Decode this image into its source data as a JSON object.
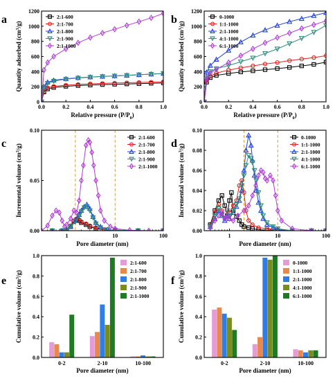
{
  "chart_data": [
    {
      "panel": "a",
      "type": "line",
      "xlabel": "Relative pressure (P/P0)",
      "ylabel": "Quantity adsorbed (cm³/g)",
      "xlim": [
        0,
        1
      ],
      "ylim": [
        0,
        1200
      ],
      "xticks": [
        0.0,
        0.2,
        0.4,
        0.6,
        0.8,
        1.0
      ],
      "yticks": [
        0,
        200,
        400,
        600,
        800,
        1000,
        1200
      ],
      "legend_position": "top-left",
      "series": [
        {
          "name": "2:1-600",
          "color": "#000000",
          "marker": "square",
          "x": [
            0,
            0.02,
            0.05,
            0.1,
            0.2,
            0.3,
            0.4,
            0.5,
            0.6,
            0.7,
            0.8,
            0.9,
            1.0
          ],
          "y": [
            0,
            130,
            170,
            190,
            205,
            215,
            222,
            228,
            232,
            236,
            240,
            245,
            250
          ]
        },
        {
          "name": "2:1-700",
          "color": "#e02020",
          "marker": "circle",
          "x": [
            0,
            0.02,
            0.05,
            0.1,
            0.2,
            0.3,
            0.4,
            0.5,
            0.6,
            0.7,
            0.8,
            0.9,
            1.0
          ],
          "y": [
            0,
            140,
            185,
            205,
            220,
            230,
            238,
            244,
            248,
            252,
            256,
            260,
            265
          ]
        },
        {
          "name": "2:1-800",
          "color": "#1f3fe0",
          "marker": "triangle-up",
          "x": [
            0,
            0.02,
            0.05,
            0.1,
            0.2,
            0.3,
            0.4,
            0.5,
            0.6,
            0.7,
            0.8,
            0.9,
            1.0
          ],
          "y": [
            0,
            200,
            260,
            285,
            305,
            318,
            328,
            336,
            343,
            350,
            358,
            366,
            375
          ]
        },
        {
          "name": "2:1-900",
          "color": "#2e8b7a",
          "marker": "triangle-down",
          "x": [
            0,
            0.02,
            0.05,
            0.1,
            0.2,
            0.3,
            0.4,
            0.5,
            0.6,
            0.7,
            0.8,
            0.9,
            1.0
          ],
          "y": [
            0,
            190,
            245,
            275,
            300,
            315,
            326,
            335,
            342,
            350,
            358,
            366,
            375
          ]
        },
        {
          "name": "2:1-1000",
          "color": "#b03ad8",
          "marker": "diamond",
          "x": [
            0,
            0.02,
            0.05,
            0.1,
            0.2,
            0.3,
            0.4,
            0.5,
            0.6,
            0.7,
            0.8,
            0.9,
            1.0
          ],
          "y": [
            0,
            420,
            520,
            600,
            700,
            780,
            850,
            910,
            960,
            1010,
            1060,
            1110,
            1170
          ]
        }
      ]
    },
    {
      "panel": "b",
      "type": "line",
      "xlabel": "Relative pressure (P/P0)",
      "ylabel": "Quantity adsorbed (cm³/g)",
      "xlim": [
        0,
        1
      ],
      "ylim": [
        0,
        1200
      ],
      "xticks": [
        0.0,
        0.2,
        0.4,
        0.6,
        0.8,
        1.0
      ],
      "yticks": [
        0,
        200,
        400,
        600,
        800,
        1000,
        1200
      ],
      "legend_position": "top-left",
      "series": [
        {
          "name": "0-1000",
          "color": "#000000",
          "marker": "square",
          "x": [
            0,
            0.02,
            0.05,
            0.1,
            0.2,
            0.3,
            0.4,
            0.5,
            0.6,
            0.7,
            0.8,
            0.9,
            1.0
          ],
          "y": [
            0,
            260,
            320,
            350,
            375,
            395,
            410,
            425,
            440,
            455,
            475,
            495,
            525
          ]
        },
        {
          "name": "1:1-1000",
          "color": "#e02020",
          "marker": "circle",
          "x": [
            0,
            0.02,
            0.05,
            0.1,
            0.2,
            0.3,
            0.4,
            0.5,
            0.6,
            0.7,
            0.8,
            0.9,
            1.0
          ],
          "y": [
            0,
            280,
            340,
            380,
            420,
            450,
            475,
            500,
            520,
            545,
            565,
            585,
            610
          ]
        },
        {
          "name": "2:1-1000",
          "color": "#1f3fe0",
          "marker": "triangle-up",
          "x": [
            0,
            0.02,
            0.05,
            0.1,
            0.2,
            0.3,
            0.4,
            0.5,
            0.6,
            0.7,
            0.8,
            0.9,
            1.0
          ],
          "y": [
            0,
            390,
            480,
            560,
            680,
            790,
            880,
            950,
            1010,
            1060,
            1100,
            1140,
            1180
          ]
        },
        {
          "name": "4:1-1000",
          "color": "#2e8b7a",
          "marker": "triangle-down",
          "x": [
            0,
            0.02,
            0.05,
            0.1,
            0.2,
            0.3,
            0.4,
            0.5,
            0.6,
            0.7,
            0.8,
            0.9,
            1.0
          ],
          "y": [
            0,
            320,
            400,
            440,
            480,
            530,
            580,
            640,
            700,
            770,
            840,
            920,
            1010
          ]
        },
        {
          "name": "6:1-1000",
          "color": "#b03ad8",
          "marker": "diamond",
          "x": [
            0,
            0.02,
            0.05,
            0.1,
            0.2,
            0.3,
            0.4,
            0.5,
            0.6,
            0.7,
            0.8,
            0.9,
            1.0
          ],
          "y": [
            0,
            300,
            380,
            430,
            520,
            610,
            700,
            780,
            850,
            910,
            970,
            1020,
            1070
          ]
        }
      ]
    },
    {
      "panel": "c",
      "type": "line",
      "xscale": "log",
      "xlabel": "Pore diameter (nm)",
      "ylabel": "Incremental volume (cm³/g)",
      "xlim": [
        0.3,
        100
      ],
      "ylim": [
        0,
        0.1
      ],
      "xticks": [
        1,
        10,
        100
      ],
      "yticks": [
        0.0,
        0.05,
        0.1
      ],
      "vlines": [
        1.5,
        10
      ],
      "legend_position": "top-right",
      "series": [
        {
          "name": "2:1-600",
          "color": "#000000",
          "marker": "square",
          "x": [
            0.5,
            0.8,
            1.0,
            1.2,
            1.4,
            1.6,
            1.8,
            2.0,
            2.5,
            3.0,
            4.0,
            6.0,
            10,
            30,
            100
          ],
          "y": [
            0,
            0,
            0.001,
            0.004,
            0.009,
            0.011,
            0.01,
            0.008,
            0.006,
            0.004,
            0.002,
            0.001,
            0.0005,
            0,
            0
          ]
        },
        {
          "name": "2:1-700",
          "color": "#e02020",
          "marker": "circle",
          "x": [
            0.5,
            0.8,
            1.0,
            1.2,
            1.4,
            1.6,
            1.8,
            2.0,
            2.5,
            3.0,
            4.0,
            6.0,
            10,
            30,
            100
          ],
          "y": [
            0,
            0,
            0.001,
            0.005,
            0.01,
            0.012,
            0.011,
            0.009,
            0.007,
            0.005,
            0.003,
            0.001,
            0.0005,
            0,
            0
          ]
        },
        {
          "name": "2:1-800",
          "color": "#1f3fe0",
          "marker": "triangle-up",
          "x": [
            0.5,
            0.8,
            1.0,
            1.2,
            1.5,
            1.8,
            2.0,
            2.3,
            2.6,
            3.0,
            3.5,
            4.0,
            5.0,
            7.0,
            10,
            30,
            100
          ],
          "y": [
            0,
            0,
            0.001,
            0.004,
            0.01,
            0.016,
            0.02,
            0.024,
            0.026,
            0.022,
            0.014,
            0.008,
            0.004,
            0.001,
            0.0005,
            0,
            0
          ]
        },
        {
          "name": "2:1-900",
          "color": "#2e8b7a",
          "marker": "triangle-down",
          "x": [
            0.5,
            0.8,
            1.0,
            1.2,
            1.5,
            1.8,
            2.0,
            2.3,
            2.6,
            3.0,
            3.5,
            4.0,
            5.0,
            7.0,
            10,
            30,
            100
          ],
          "y": [
            0,
            0,
            0.001,
            0.004,
            0.009,
            0.015,
            0.019,
            0.023,
            0.024,
            0.02,
            0.013,
            0.007,
            0.003,
            0.001,
            0.0005,
            0,
            0
          ]
        },
        {
          "name": "2:1-1000",
          "color": "#b03ad8",
          "marker": "diamond",
          "x": [
            0.3,
            0.4,
            0.5,
            0.6,
            0.7,
            0.8,
            0.9,
            1.0,
            1.2,
            1.4,
            1.6,
            1.8,
            2.0,
            2.2,
            2.5,
            2.8,
            3.0,
            3.3,
            3.6,
            4.0,
            4.5,
            5.0,
            6.0,
            8.0,
            10,
            20,
            50,
            100
          ],
          "y": [
            0,
            0.005,
            0.015,
            0.02,
            0.018,
            0.01,
            0.004,
            0.006,
            0.012,
            0.02,
            0.018,
            0.03,
            0.05,
            0.065,
            0.085,
            0.09,
            0.088,
            0.078,
            0.065,
            0.05,
            0.035,
            0.02,
            0.01,
            0.004,
            0.002,
            0.0005,
            0,
            0
          ]
        }
      ]
    },
    {
      "panel": "d",
      "type": "line",
      "xscale": "log",
      "xlabel": "Pore diameter (nm)",
      "ylabel": "Incremental volume (cm³/g)",
      "xlim": [
        0.3,
        100
      ],
      "ylim": [
        0,
        0.1
      ],
      "xticks": [
        1,
        10,
        100
      ],
      "yticks": [
        0.0,
        0.02,
        0.04,
        0.06,
        0.08,
        0.1
      ],
      "vlines": [
        2,
        10
      ],
      "legend_position": "top-right",
      "series": [
        {
          "name": "0-1000",
          "color": "#000000",
          "marker": "square",
          "x": [
            0.4,
            0.5,
            0.6,
            0.7,
            0.8,
            0.9,
            1.0,
            1.1,
            1.2,
            1.4,
            1.6,
            1.8,
            2.0,
            2.5,
            3.0,
            4.0,
            6.0,
            10,
            20,
            50,
            100
          ],
          "y": [
            0.006,
            0.02,
            0.03,
            0.035,
            0.025,
            0.015,
            0.03,
            0.038,
            0.02,
            0.014,
            0.01,
            0.006,
            0.004,
            0.003,
            0.002,
            0.001,
            0.0005,
            0,
            0,
            0,
            0
          ]
        },
        {
          "name": "1:1-1000",
          "color": "#e02020",
          "marker": "circle",
          "x": [
            0.4,
            0.5,
            0.6,
            0.7,
            0.8,
            0.9,
            1.0,
            1.2,
            1.4,
            1.6,
            1.8,
            2.0,
            2.2,
            2.5,
            3.0,
            4.0,
            6.0,
            10,
            20,
            50,
            100
          ],
          "y": [
            0.005,
            0.018,
            0.026,
            0.02,
            0.012,
            0.02,
            0.018,
            0.025,
            0.03,
            0.045,
            0.05,
            0.038,
            0.02,
            0.01,
            0.006,
            0.003,
            0.002,
            0.001,
            0,
            0,
            0
          ]
        },
        {
          "name": "2:1-1000",
          "color": "#1f3fe0",
          "marker": "triangle-up",
          "x": [
            0.4,
            0.5,
            0.6,
            0.7,
            0.8,
            0.9,
            1.0,
            1.2,
            1.4,
            1.6,
            1.8,
            2.0,
            2.2,
            2.5,
            2.8,
            3.0,
            3.3,
            3.6,
            4.0,
            4.5,
            5.0,
            6.0,
            8.0,
            10,
            20,
            50,
            100
          ],
          "y": [
            0.004,
            0.012,
            0.02,
            0.015,
            0.01,
            0.015,
            0.012,
            0.018,
            0.024,
            0.03,
            0.04,
            0.06,
            0.08,
            0.095,
            0.085,
            0.07,
            0.055,
            0.04,
            0.028,
            0.02,
            0.012,
            0.006,
            0.003,
            0.001,
            0,
            0,
            0
          ]
        },
        {
          "name": "4:1-1000",
          "color": "#2e8b7a",
          "marker": "triangle-down",
          "x": [
            0.4,
            0.5,
            0.6,
            0.7,
            0.8,
            0.9,
            1.0,
            1.2,
            1.4,
            1.6,
            1.8,
            2.0,
            2.2,
            2.5,
            2.8,
            3.0,
            3.3,
            3.6,
            4.0,
            4.5,
            5.0,
            6.0,
            8.0,
            10,
            20,
            50,
            100
          ],
          "y": [
            0.004,
            0.015,
            0.022,
            0.016,
            0.012,
            0.02,
            0.015,
            0.02,
            0.026,
            0.032,
            0.045,
            0.055,
            0.065,
            0.075,
            0.072,
            0.068,
            0.06,
            0.05,
            0.038,
            0.025,
            0.015,
            0.008,
            0.004,
            0.002,
            0,
            0,
            0
          ]
        },
        {
          "name": "6:1-1000",
          "color": "#b03ad8",
          "marker": "diamond",
          "x": [
            0.4,
            0.5,
            0.6,
            0.7,
            0.8,
            0.9,
            1.0,
            1.2,
            1.5,
            2.0,
            2.5,
            3.0,
            3.5,
            4.0,
            4.5,
            5.0,
            5.5,
            6.0,
            7.0,
            8.0,
            9.0,
            10,
            12,
            20,
            50,
            100
          ],
          "y": [
            0.003,
            0.01,
            0.015,
            0.018,
            0.012,
            0.015,
            0.012,
            0.01,
            0.015,
            0.02,
            0.025,
            0.035,
            0.045,
            0.055,
            0.06,
            0.058,
            0.052,
            0.05,
            0.055,
            0.05,
            0.035,
            0.02,
            0.01,
            0.002,
            0,
            0
          ]
        }
      ]
    },
    {
      "panel": "e",
      "type": "bar",
      "xlabel": "Pore diameter (nm)",
      "ylabel": "Cumulative volume (cm³/g)",
      "categories": [
        "0-2",
        "2-10",
        "10-100"
      ],
      "ylim": [
        0,
        1.0
      ],
      "yticks": [
        0.0,
        0.2,
        0.4,
        0.6,
        0.8,
        1.0
      ],
      "legend_position": "top-right",
      "series": [
        {
          "name": "2:1-600",
          "color": "#e49bd6",
          "values": [
            0.15,
            0.21,
            0.01
          ]
        },
        {
          "name": "2:1-700",
          "color": "#e8884a",
          "values": [
            0.13,
            0.25,
            0.01
          ]
        },
        {
          "name": "2:1-800",
          "color": "#2f7de6",
          "values": [
            0.05,
            0.52,
            0.02
          ]
        },
        {
          "name": "2:1-900",
          "color": "#7a8c1d",
          "values": [
            0.05,
            0.32,
            0.01
          ]
        },
        {
          "name": "2:1-1000",
          "color": "#1e7a23",
          "values": [
            0.42,
            0.98,
            0.01
          ]
        }
      ]
    },
    {
      "panel": "f",
      "type": "bar",
      "xlabel": "Pore diameter (nm)",
      "ylabel": "Cumulative volume (cm³/g)",
      "categories": [
        "0-2",
        "2-10",
        "10-100"
      ],
      "ylim": [
        0,
        1.0
      ],
      "yticks": [
        0.0,
        0.2,
        0.4,
        0.6,
        0.8,
        1.0
      ],
      "legend_position": "top-right",
      "series": [
        {
          "name": "0-1000",
          "color": "#e49bd6",
          "values": [
            0.47,
            0.13,
            0.08
          ]
        },
        {
          "name": "1:1-1000",
          "color": "#e8884a",
          "values": [
            0.49,
            0.2,
            0.07
          ]
        },
        {
          "name": "2:1-1000",
          "color": "#2f7de6",
          "values": [
            0.43,
            0.98,
            0.05
          ]
        },
        {
          "name": "4:1-1000",
          "color": "#7a8c1d",
          "values": [
            0.39,
            0.96,
            0.07
          ]
        },
        {
          "name": "6:1-1000",
          "color": "#1e7a23",
          "values": [
            0.27,
            1.0,
            0.07
          ]
        }
      ]
    }
  ]
}
